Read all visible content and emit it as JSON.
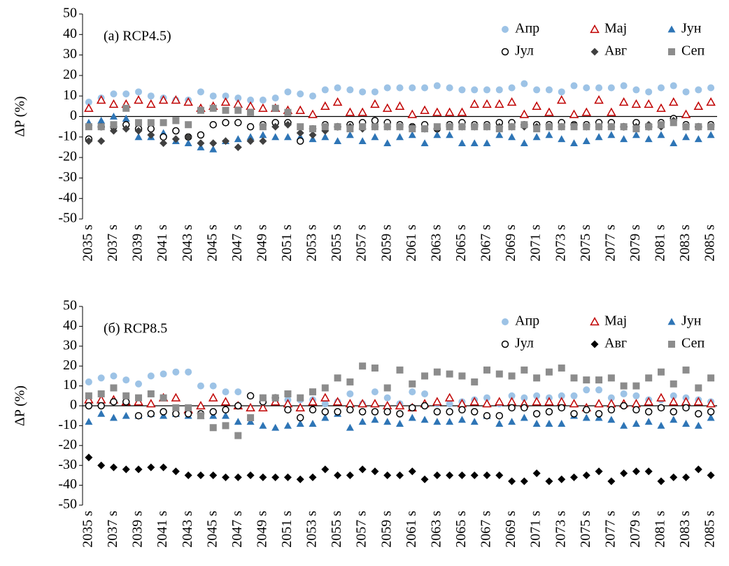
{
  "chart_data": [
    {
      "type": "scatter",
      "annotation": "(a) RCP4.5)",
      "y_label": "ΔP (%)",
      "legend": "top-right",
      "ylim": [
        -50,
        50
      ],
      "yticks": [
        -50,
        -40,
        -30,
        -20,
        -10,
        0,
        10,
        20,
        30,
        40,
        50
      ],
      "categories": [
        "2035 s",
        null,
        "2037 s",
        null,
        "2039 s",
        null,
        "2041 s",
        null,
        "2043 s",
        null,
        "2045 s",
        null,
        "2047 s",
        null,
        "2049 s",
        null,
        "2051 s",
        null,
        "2053 s",
        null,
        "2055 s",
        null,
        "2057 s",
        null,
        "2059 s",
        null,
        "2061 s",
        null,
        "2063 s",
        null,
        "2065 s",
        null,
        "2067 s",
        null,
        "2069 s",
        null,
        "2071 s",
        null,
        "2073 s",
        null,
        "2075 s",
        null,
        "2077 s",
        null,
        "2079 s",
        null,
        "2081 s",
        null,
        "2083 s",
        null,
        "2085 s"
      ],
      "series": [
        {
          "name": "Апр",
          "color": "#9dc3e6",
          "marker": "circle",
          "values": [
            7,
            9,
            11,
            11,
            12,
            10,
            9,
            8,
            8,
            12,
            10,
            10,
            9,
            8,
            8,
            9,
            12,
            11,
            10,
            13,
            14,
            13,
            12,
            12,
            14,
            14,
            14,
            14,
            15,
            14,
            13,
            13,
            13,
            13,
            14,
            16,
            13,
            13,
            12,
            15,
            14,
            14,
            14,
            15,
            13,
            12,
            14,
            15,
            12,
            13,
            14
          ]
        },
        {
          "name": "Мај",
          "color": "#c00000",
          "marker": "triangle-open",
          "values": [
            4,
            8,
            6,
            6,
            8,
            6,
            8,
            8,
            7,
            4,
            5,
            7,
            6,
            5,
            4,
            4,
            3,
            3,
            1,
            5,
            7,
            2,
            2,
            6,
            4,
            5,
            1,
            3,
            2,
            2,
            2,
            6,
            6,
            6,
            7,
            1,
            5,
            2,
            8,
            1,
            2,
            8,
            2,
            7,
            6,
            6,
            4,
            7,
            1,
            5,
            7
          ]
        },
        {
          "name": "Јун",
          "color": "#2e75b6",
          "marker": "triangle",
          "values": [
            -3,
            -2,
            0,
            -1,
            -10,
            -10,
            -8,
            -12,
            -13,
            -15,
            -16,
            -12,
            -11,
            -10,
            -9,
            -10,
            -10,
            -10,
            -11,
            -10,
            -12,
            -9,
            -12,
            -10,
            -13,
            -10,
            -9,
            -13,
            -9,
            -9,
            -13,
            -13,
            -13,
            -9,
            -10,
            -13,
            -10,
            -9,
            -11,
            -13,
            -12,
            -10,
            -9,
            -11,
            -9,
            -11,
            -9,
            -13,
            -10,
            -11,
            -9
          ]
        },
        {
          "name": "Јул",
          "color": "#000000",
          "marker": "circle-open",
          "values": [
            -11,
            -5,
            -5,
            -4,
            -6,
            -6,
            -10,
            -7,
            -10,
            -9,
            -4,
            -3,
            -3,
            -5,
            -4,
            -3,
            -3,
            -12,
            -6,
            -4,
            -5,
            -4,
            -3,
            -2,
            -3,
            -4,
            -5,
            -4,
            -6,
            -4,
            -3,
            -4,
            -4,
            -3,
            -3,
            -4,
            -4,
            -4,
            -3,
            -4,
            -4,
            -3,
            -3,
            -5,
            -3,
            -5,
            -3,
            -1,
            -4,
            -5,
            -4
          ]
        },
        {
          "name": "Авг",
          "color": "#404040",
          "marker": "diamond",
          "values": [
            -12,
            -12,
            -7,
            -6,
            -7,
            -9,
            -13,
            -11,
            -10,
            -13,
            -13,
            -12,
            -15,
            -12,
            -12,
            -5,
            -4,
            -8,
            -9,
            -7,
            -5,
            -5,
            -6,
            -5,
            -5,
            -5,
            -5,
            -6,
            -6,
            -5,
            -5,
            -5,
            -5,
            -5,
            -5,
            -5,
            -5,
            -5,
            -5,
            -4,
            -5,
            -5,
            -5,
            -5,
            -5,
            -4,
            -5,
            -2,
            -5,
            -5,
            -5
          ]
        },
        {
          "name": "Сеп",
          "color": "#8c8c8c",
          "marker": "square",
          "values": [
            -5,
            -5,
            -4,
            4,
            -3,
            -3,
            -3,
            -2,
            -4,
            3,
            4,
            3,
            3,
            2,
            -5,
            4,
            2,
            -5,
            -6,
            -5,
            -5,
            -6,
            -5,
            -5,
            -5,
            -5,
            -6,
            -6,
            -5,
            -5,
            -5,
            -5,
            -5,
            -6,
            -5,
            -4,
            -6,
            -5,
            -5,
            -5,
            -5,
            -5,
            -5,
            -5,
            -6,
            -5,
            -4,
            -3,
            -5,
            -5,
            -5
          ]
        }
      ]
    },
    {
      "type": "scatter",
      "annotation": "(б) RCP8.5",
      "y_label": "ΔP (%)",
      "legend": "top-right",
      "ylim": [
        -50,
        50
      ],
      "yticks": [
        -50,
        -40,
        -30,
        -20,
        -10,
        0,
        10,
        20,
        30,
        40,
        50
      ],
      "categories": [
        "2035 s",
        null,
        "2037 s",
        null,
        "2039 s",
        null,
        "2041 s",
        null,
        "2043 s",
        null,
        "2045 s",
        null,
        "2047 s",
        null,
        "2049 s",
        null,
        "2051 s",
        null,
        "2053 s",
        null,
        "2055 s",
        null,
        "2057 s",
        null,
        "2059 s",
        null,
        "2061 s",
        null,
        "2063 s",
        null,
        "2065 s",
        null,
        "2067 s",
        null,
        "2069 s",
        null,
        "2071 s",
        null,
        "2073 s",
        null,
        "2075 s",
        null,
        "2077 s",
        null,
        "2079 s",
        null,
        "2081 s",
        null,
        "2083 s",
        null,
        "2085 s"
      ],
      "series": [
        {
          "name": "Апр",
          "color": "#9dc3e6",
          "marker": "circle",
          "values": [
            12,
            14,
            15,
            13,
            11,
            15,
            16,
            17,
            17,
            10,
            10,
            7,
            7,
            5,
            4,
            3,
            3,
            3,
            3,
            1,
            2,
            6,
            1,
            7,
            4,
            1,
            7,
            6,
            1,
            1,
            2,
            3,
            4,
            1,
            5,
            4,
            5,
            4,
            5,
            5,
            8,
            8,
            4,
            6,
            5,
            3,
            3,
            5,
            4,
            3,
            2
          ]
        },
        {
          "name": "Мај",
          "color": "#c00000",
          "marker": "triangle-open",
          "values": [
            3,
            3,
            3,
            2,
            2,
            1,
            4,
            4,
            -2,
            0,
            4,
            2,
            0,
            -1,
            -1,
            2,
            1,
            -1,
            2,
            4,
            2,
            1,
            1,
            1,
            0,
            0,
            -1,
            1,
            2,
            4,
            1,
            2,
            1,
            2,
            2,
            1,
            2,
            2,
            2,
            1,
            -1,
            1,
            1,
            1,
            1,
            2,
            4,
            2,
            2,
            2,
            1
          ]
        },
        {
          "name": "Јун",
          "color": "#2e75b6",
          "marker": "triangle",
          "values": [
            -8,
            -4,
            -6,
            -5,
            -5,
            -4,
            -5,
            -4,
            -5,
            -5,
            -5,
            -5,
            -8,
            -8,
            -10,
            -11,
            -10,
            -9,
            -9,
            -6,
            -4,
            -11,
            -8,
            -7,
            -8,
            -9,
            -6,
            -7,
            -8,
            -8,
            -7,
            -8,
            -5,
            -9,
            -8,
            -6,
            -9,
            -9,
            -9,
            -5,
            -6,
            -6,
            -7,
            -10,
            -9,
            -8,
            -10,
            -7,
            -9,
            -10,
            -6
          ]
        },
        {
          "name": "Јул",
          "color": "#000000",
          "marker": "circle-open",
          "values": [
            0,
            0,
            2,
            2,
            -5,
            -4,
            -3,
            -4,
            -4,
            -4,
            -3,
            -2,
            0,
            5,
            2,
            4,
            -2,
            -6,
            -2,
            -3,
            -3,
            -2,
            -3,
            -3,
            -3,
            -4,
            -1,
            0,
            -3,
            -3,
            -2,
            -3,
            -5,
            -5,
            -1,
            -1,
            -4,
            -3,
            -1,
            -4,
            -2,
            -4,
            -2,
            0,
            -2,
            -3,
            -1,
            -3,
            -1,
            -4,
            -3
          ]
        },
        {
          "name": "Авг",
          "color": "#000000",
          "marker": "diamond",
          "values": [
            -26,
            -30,
            -31,
            -32,
            -32,
            -31,
            -31,
            -33,
            -35,
            -35,
            -35,
            -36,
            -36,
            -35,
            -36,
            -36,
            -36,
            -37,
            -36,
            -32,
            -35,
            -35,
            -32,
            -33,
            -35,
            -35,
            -33,
            -37,
            -35,
            -35,
            -35,
            -35,
            -35,
            -35,
            -38,
            -38,
            -34,
            -38,
            -37,
            -36,
            -35,
            -33,
            -38,
            -34,
            -33,
            -33,
            -38,
            -36,
            -36,
            -32,
            -35
          ]
        },
        {
          "name": "Сеп",
          "color": "#8c8c8c",
          "marker": "square",
          "values": [
            5,
            6,
            9,
            5,
            4,
            6,
            4,
            -1,
            -1,
            -5,
            -11,
            -10,
            -15,
            -6,
            4,
            4,
            6,
            4,
            7,
            9,
            14,
            12,
            20,
            19,
            9,
            18,
            11,
            15,
            17,
            16,
            15,
            12,
            18,
            16,
            15,
            18,
            14,
            17,
            19,
            14,
            13,
            13,
            14,
            10,
            10,
            14,
            17,
            11,
            18,
            9,
            14
          ]
        }
      ]
    }
  ]
}
